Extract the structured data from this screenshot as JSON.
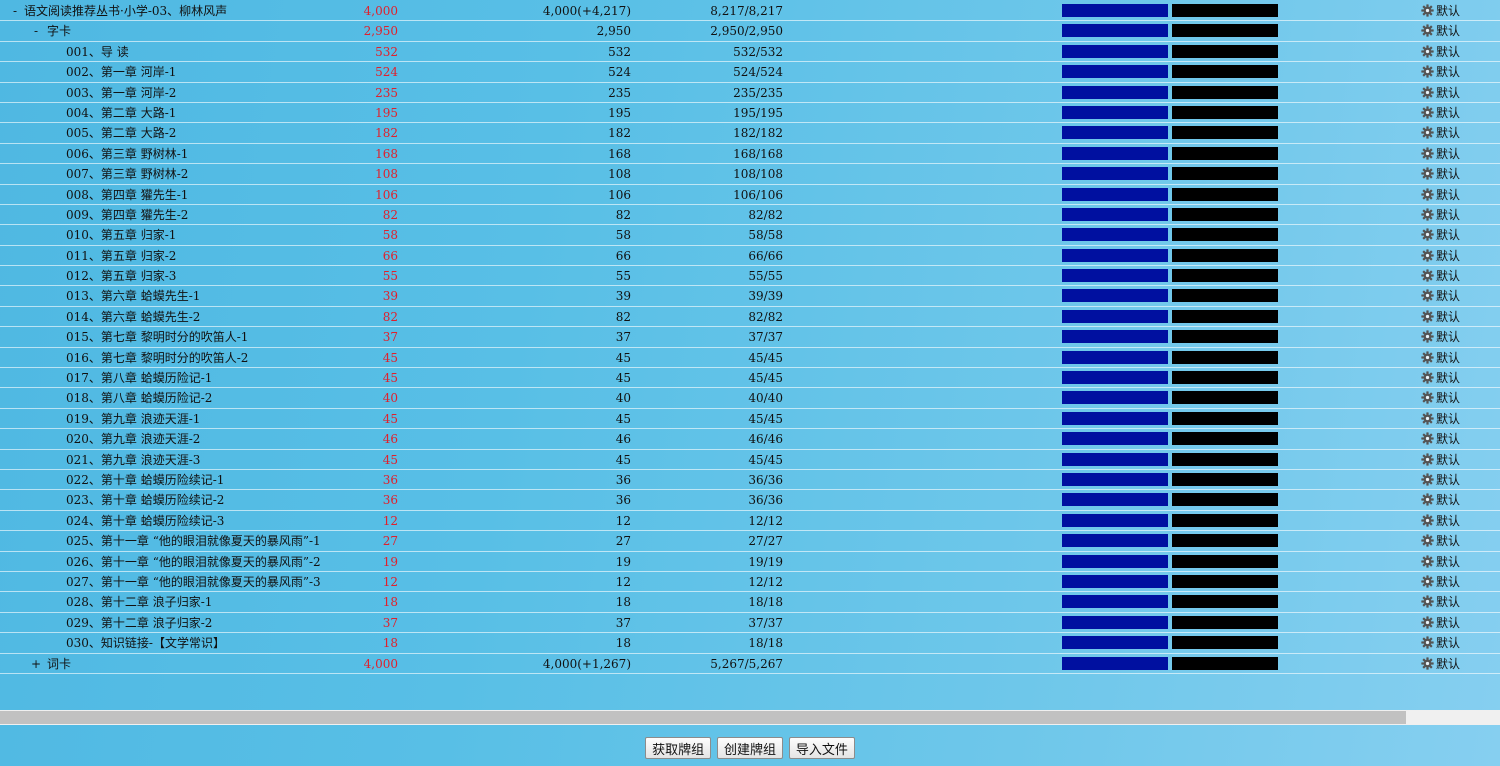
{
  "rows": [
    {
      "level": 0,
      "expander": "-",
      "name": "语文阅读推荐丛书·小学-03、柳林风声",
      "new": "4,000",
      "due": "4,000(+4,217)",
      "total": "8,217/8,217",
      "option": "默认"
    },
    {
      "level": 1,
      "expander": "-",
      "name": "字卡",
      "new": "2,950",
      "due": "2,950",
      "total": "2,950/2,950",
      "option": "默认"
    },
    {
      "level": 2,
      "expander": "",
      "name": "001、导 读",
      "new": "532",
      "due": "532",
      "total": "532/532",
      "option": "默认"
    },
    {
      "level": 2,
      "expander": "",
      "name": "002、第一章 河岸-1",
      "new": "524",
      "due": "524",
      "total": "524/524",
      "option": "默认"
    },
    {
      "level": 2,
      "expander": "",
      "name": "003、第一章 河岸-2",
      "new": "235",
      "due": "235",
      "total": "235/235",
      "option": "默认"
    },
    {
      "level": 2,
      "expander": "",
      "name": "004、第二章 大路-1",
      "new": "195",
      "due": "195",
      "total": "195/195",
      "option": "默认"
    },
    {
      "level": 2,
      "expander": "",
      "name": "005、第二章 大路-2",
      "new": "182",
      "due": "182",
      "total": "182/182",
      "option": "默认"
    },
    {
      "level": 2,
      "expander": "",
      "name": "006、第三章 野树林-1",
      "new": "168",
      "due": "168",
      "total": "168/168",
      "option": "默认"
    },
    {
      "level": 2,
      "expander": "",
      "name": "007、第三章 野树林-2",
      "new": "108",
      "due": "108",
      "total": "108/108",
      "option": "默认"
    },
    {
      "level": 2,
      "expander": "",
      "name": "008、第四章 獾先生-1",
      "new": "106",
      "due": "106",
      "total": "106/106",
      "option": "默认"
    },
    {
      "level": 2,
      "expander": "",
      "name": "009、第四章 獾先生-2",
      "new": "82",
      "due": "82",
      "total": "82/82",
      "option": "默认"
    },
    {
      "level": 2,
      "expander": "",
      "name": "010、第五章 归家-1",
      "new": "58",
      "due": "58",
      "total": "58/58",
      "option": "默认"
    },
    {
      "level": 2,
      "expander": "",
      "name": "011、第五章 归家-2",
      "new": "66",
      "due": "66",
      "total": "66/66",
      "option": "默认"
    },
    {
      "level": 2,
      "expander": "",
      "name": "012、第五章 归家-3",
      "new": "55",
      "due": "55",
      "total": "55/55",
      "option": "默认"
    },
    {
      "level": 2,
      "expander": "",
      "name": "013、第六章 蛤蟆先生-1",
      "new": "39",
      "due": "39",
      "total": "39/39",
      "option": "默认"
    },
    {
      "level": 2,
      "expander": "",
      "name": "014、第六章 蛤蟆先生-2",
      "new": "82",
      "due": "82",
      "total": "82/82",
      "option": "默认"
    },
    {
      "level": 2,
      "expander": "",
      "name": "015、第七章 黎明时分的吹笛人-1",
      "new": "37",
      "due": "37",
      "total": "37/37",
      "option": "默认"
    },
    {
      "level": 2,
      "expander": "",
      "name": "016、第七章 黎明时分的吹笛人-2",
      "new": "45",
      "due": "45",
      "total": "45/45",
      "option": "默认"
    },
    {
      "level": 2,
      "expander": "",
      "name": "017、第八章 蛤蟆历险记-1",
      "new": "45",
      "due": "45",
      "total": "45/45",
      "option": "默认"
    },
    {
      "level": 2,
      "expander": "",
      "name": "018、第八章 蛤蟆历险记-2",
      "new": "40",
      "due": "40",
      "total": "40/40",
      "option": "默认"
    },
    {
      "level": 2,
      "expander": "",
      "name": "019、第九章 浪迹天涯-1",
      "new": "45",
      "due": "45",
      "total": "45/45",
      "option": "默认"
    },
    {
      "level": 2,
      "expander": "",
      "name": "020、第九章 浪迹天涯-2",
      "new": "46",
      "due": "46",
      "total": "46/46",
      "option": "默认"
    },
    {
      "level": 2,
      "expander": "",
      "name": "021、第九章 浪迹天涯-3",
      "new": "45",
      "due": "45",
      "total": "45/45",
      "option": "默认"
    },
    {
      "level": 2,
      "expander": "",
      "name": "022、第十章 蛤蟆历险续记-1",
      "new": "36",
      "due": "36",
      "total": "36/36",
      "option": "默认"
    },
    {
      "level": 2,
      "expander": "",
      "name": "023、第十章 蛤蟆历险续记-2",
      "new": "36",
      "due": "36",
      "total": "36/36",
      "option": "默认"
    },
    {
      "level": 2,
      "expander": "",
      "name": "024、第十章 蛤蟆历险续记-3",
      "new": "12",
      "due": "12",
      "total": "12/12",
      "option": "默认"
    },
    {
      "level": 2,
      "expander": "",
      "name": "025、第十一章 “他的眼泪就像夏天的暴风雨”-1",
      "new": "27",
      "due": "27",
      "total": "27/27",
      "option": "默认"
    },
    {
      "level": 2,
      "expander": "",
      "name": "026、第十一章 “他的眼泪就像夏天的暴风雨”-2",
      "new": "19",
      "due": "19",
      "total": "19/19",
      "option": "默认"
    },
    {
      "level": 2,
      "expander": "",
      "name": "027、第十一章 “他的眼泪就像夏天的暴风雨”-3",
      "new": "12",
      "due": "12",
      "total": "12/12",
      "option": "默认"
    },
    {
      "level": 2,
      "expander": "",
      "name": "028、第十二章 浪子归家-1",
      "new": "18",
      "due": "18",
      "total": "18/18",
      "option": "默认"
    },
    {
      "level": 2,
      "expander": "",
      "name": "029、第十二章 浪子归家-2",
      "new": "37",
      "due": "37",
      "total": "37/37",
      "option": "默认"
    },
    {
      "level": 2,
      "expander": "",
      "name": "030、知识链接-【文学常识】",
      "new": "18",
      "due": "18",
      "total": "18/18",
      "option": "默认"
    },
    {
      "level": 1,
      "expander": "+",
      "name": "词卡",
      "new": "4,000",
      "due": "4,000(+1,267)",
      "total": "5,267/5,267",
      "option": "默认"
    }
  ],
  "footer": {
    "get_deck": "获取牌组",
    "create_deck": "创建牌组",
    "import_file": "导入文件"
  },
  "colors": {
    "new_count": "#e0202c",
    "bar_blue": "#0010a0",
    "bar_black": "#000000"
  },
  "icons": {
    "option": "gear-icon"
  }
}
